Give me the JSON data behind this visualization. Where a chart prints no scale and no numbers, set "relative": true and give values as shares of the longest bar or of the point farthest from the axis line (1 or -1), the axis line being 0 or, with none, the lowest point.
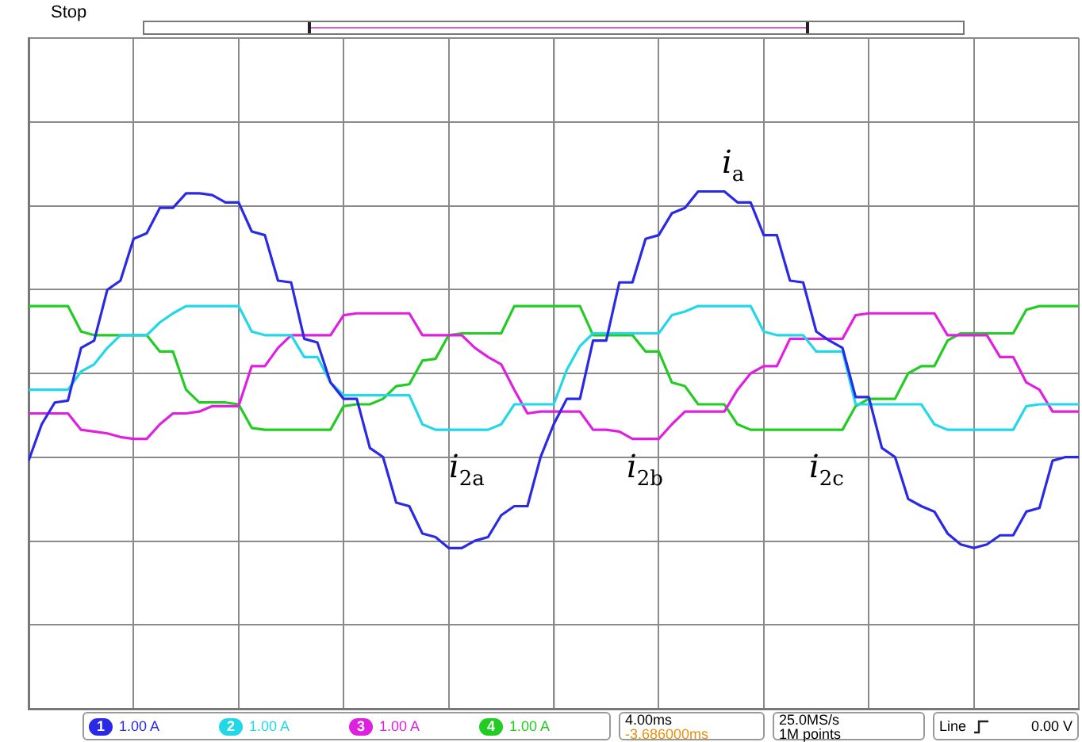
{
  "chart_data": {
    "type": "line",
    "relative": true,
    "grid": true,
    "legend": false,
    "marker": "none",
    "line_style": "solid",
    "categories": [
      null,
      null,
      null,
      null,
      null,
      null,
      null,
      null,
      null,
      null,
      null,
      null,
      null,
      null,
      null,
      null,
      null,
      null,
      null,
      null,
      null,
      null,
      null,
      null,
      null,
      null,
      null,
      null,
      null,
      null,
      null,
      null,
      null,
      null,
      null,
      null,
      null,
      null,
      null,
      null,
      null,
      null,
      null,
      null,
      null,
      null,
      null,
      null,
      null,
      null,
      null,
      null,
      null,
      null,
      null,
      null,
      null,
      null,
      null,
      null,
      null,
      null,
      null,
      null,
      null,
      null,
      null,
      null,
      null,
      null,
      null,
      null,
      null,
      null,
      null,
      null,
      null,
      null,
      null,
      null,
      null
    ],
    "series": [
      {
        "name": "i$_{a}$",
        "color": "#2a2ae6",
        "values": [
          -0.48,
          -0.28,
          -0.16,
          -0.15,
          0.14,
          0.18,
          0.46,
          0.51,
          0.74,
          0.77,
          0.91,
          0.91,
          0.99,
          0.99,
          0.98,
          0.94,
          0.94,
          0.78,
          0.76,
          0.51,
          0.5,
          0.19,
          0.17,
          -0.05,
          -0.14,
          -0.14,
          -0.41,
          -0.46,
          -0.71,
          -0.73,
          -0.88,
          -0.9,
          -0.96,
          -0.96,
          -0.92,
          -0.9,
          -0.78,
          -0.73,
          -0.73,
          -0.46,
          -0.28,
          -0.14,
          -0.14,
          0.18,
          0.18,
          0.5,
          0.5,
          0.74,
          0.76,
          0.88,
          0.91,
          1,
          1,
          1,
          0.94,
          0.94,
          0.76,
          0.76,
          0.51,
          0.5,
          0.23,
          0.18,
          0.14,
          -0.13,
          -0.13,
          -0.41,
          -0.46,
          -0.69,
          -0.73,
          -0.76,
          -0.88,
          -0.94,
          -0.96,
          -0.94,
          -0.89,
          -0.89,
          -0.76,
          -0.74,
          -0.48,
          -0.46,
          -0.46
        ]
      },
      {
        "name": "i$_{2a}$",
        "color": "#22d8e8",
        "values": [
          -0.09,
          -0.09,
          -0.09,
          -0.09,
          0.01,
          0.05,
          0.14,
          0.21,
          0.21,
          0.21,
          0.28,
          0.33,
          0.37,
          0.37,
          0.37,
          0.37,
          0.37,
          0.23,
          0.21,
          0.21,
          0.21,
          0.09,
          0.09,
          -0.05,
          -0.12,
          -0.12,
          -0.12,
          -0.12,
          -0.12,
          -0.12,
          -0.28,
          -0.31,
          -0.31,
          -0.31,
          -0.31,
          -0.31,
          -0.28,
          -0.17,
          -0.17,
          -0.17,
          -0.17,
          0.02,
          0.15,
          0.22,
          0.22,
          0.22,
          0.22,
          0.22,
          0.22,
          0.32,
          0.34,
          0.37,
          0.37,
          0.37,
          0.37,
          0.37,
          0.23,
          0.21,
          0.21,
          0.21,
          0.12,
          0.12,
          0.12,
          -0.17,
          -0.17,
          -0.17,
          -0.17,
          -0.17,
          -0.17,
          -0.28,
          -0.31,
          -0.31,
          -0.31,
          -0.31,
          -0.31,
          -0.31,
          -0.18,
          -0.17,
          -0.17,
          -0.17,
          -0.17
        ]
      },
      {
        "name": "i$_{2b}$",
        "color": "#e020e0",
        "values": [
          -0.22,
          -0.22,
          -0.22,
          -0.22,
          -0.31,
          -0.32,
          -0.33,
          -0.35,
          -0.36,
          -0.36,
          -0.28,
          -0.22,
          -0.22,
          -0.21,
          -0.18,
          -0.18,
          -0.18,
          0.04,
          0.04,
          0.14,
          0.21,
          0.21,
          0.21,
          0.21,
          0.32,
          0.33,
          0.33,
          0.33,
          0.33,
          0.33,
          0.21,
          0.21,
          0.21,
          0.21,
          0.14,
          0.09,
          0.05,
          -0.09,
          -0.22,
          -0.21,
          -0.21,
          -0.21,
          -0.21,
          -0.31,
          -0.31,
          -0.32,
          -0.36,
          -0.36,
          -0.36,
          -0.28,
          -0.21,
          -0.21,
          -0.21,
          -0.21,
          -0.09,
          0,
          0.04,
          0.04,
          0.19,
          0.19,
          0.19,
          0.19,
          0.19,
          0.32,
          0.33,
          0.33,
          0.33,
          0.33,
          0.33,
          0.33,
          0.21,
          0.21,
          0.21,
          0.21,
          0.09,
          0.09,
          -0.05,
          -0.09,
          -0.21,
          -0.21,
          -0.21
        ]
      },
      {
        "name": "i$_{2c}$",
        "color": "#22cc22",
        "values": [
          0.37,
          0.37,
          0.37,
          0.37,
          0.23,
          0.21,
          0.21,
          0.21,
          0.21,
          0.21,
          0.12,
          0.12,
          -0.09,
          -0.16,
          -0.16,
          -0.16,
          -0.17,
          -0.3,
          -0.31,
          -0.31,
          -0.31,
          -0.31,
          -0.31,
          -0.31,
          -0.18,
          -0.17,
          -0.17,
          -0.14,
          -0.07,
          -0.06,
          0.07,
          0.08,
          0.21,
          0.22,
          0.22,
          0.22,
          0.22,
          0.37,
          0.37,
          0.37,
          0.37,
          0.37,
          0.37,
          0.21,
          0.21,
          0.21,
          0.21,
          0.12,
          0.12,
          -0.05,
          -0.07,
          -0.17,
          -0.17,
          -0.17,
          -0.28,
          -0.31,
          -0.31,
          -0.31,
          -0.31,
          -0.31,
          -0.31,
          -0.31,
          -0.31,
          -0.18,
          -0.14,
          -0.14,
          -0.14,
          0,
          0.04,
          0.04,
          0.18,
          0.22,
          0.22,
          0.22,
          0.22,
          0.22,
          0.35,
          0.37,
          0.37,
          0.37,
          0.37
        ]
      }
    ],
    "annotations": [
      "Stop",
      "1",
      "1.00 A",
      "2",
      "1.00 A",
      "3",
      "1.00 A",
      "4",
      "1.00 A",
      "4.00ms",
      "-3.686000ms",
      "25.0MS/s",
      "1M points",
      "Line",
      "0.00 V"
    ]
  }
}
